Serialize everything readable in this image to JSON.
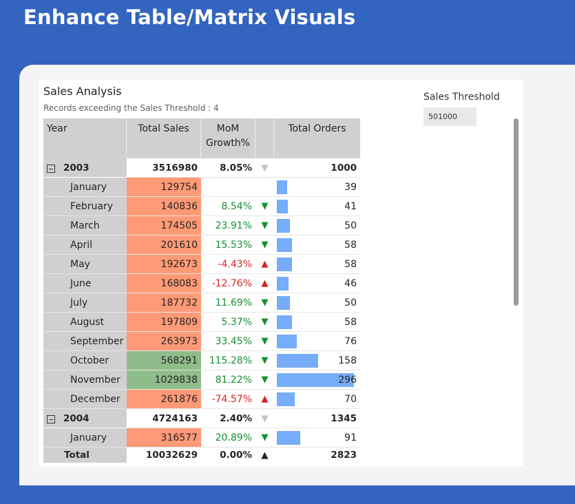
{
  "page": {
    "title": "Enhance Table/Matrix Visuals"
  },
  "visual": {
    "title": "Sales Analysis",
    "subtitle": "Records exceeding the Sales Threshold : 4"
  },
  "slicer": {
    "label": "Sales Threshold",
    "value": "501000"
  },
  "matrix": {
    "columns": {
      "year": "Year",
      "sales": "Total Sales",
      "growth_line1": "MoM",
      "growth_line2": "Growth%",
      "orders": "Total Orders"
    },
    "colors": {
      "below_threshold": "#ff9a76",
      "above_threshold": "#8fbc8b",
      "bar": "#77acf8",
      "positive": "#14902e",
      "negative": "#d5231f"
    },
    "max_orders": 296,
    "rows": [
      {
        "type": "year",
        "label": "2003",
        "sales": "3516980",
        "growth": "8.05%",
        "trend": "neutral",
        "orders": "1000"
      },
      {
        "type": "month",
        "label": "January",
        "sales": "129754",
        "growth": "",
        "trend": "none",
        "orders": "39",
        "status": "below"
      },
      {
        "type": "month",
        "label": "February",
        "sales": "140836",
        "growth": "8.54%",
        "trend": "down",
        "orders": "41",
        "status": "below"
      },
      {
        "type": "month",
        "label": "March",
        "sales": "174505",
        "growth": "23.91%",
        "trend": "down",
        "orders": "50",
        "status": "below"
      },
      {
        "type": "month",
        "label": "April",
        "sales": "201610",
        "growth": "15.53%",
        "trend": "down",
        "orders": "58",
        "status": "below"
      },
      {
        "type": "month",
        "label": "May",
        "sales": "192673",
        "growth": "-4.43%",
        "trend": "up",
        "orders": "58",
        "status": "below"
      },
      {
        "type": "month",
        "label": "June",
        "sales": "168083",
        "growth": "-12.76%",
        "trend": "up",
        "orders": "46",
        "status": "below"
      },
      {
        "type": "month",
        "label": "July",
        "sales": "187732",
        "growth": "11.69%",
        "trend": "down",
        "orders": "50",
        "status": "below"
      },
      {
        "type": "month",
        "label": "August",
        "sales": "197809",
        "growth": "5.37%",
        "trend": "down",
        "orders": "58",
        "status": "below"
      },
      {
        "type": "month",
        "label": "September",
        "sales": "263973",
        "growth": "33.45%",
        "trend": "down",
        "orders": "76",
        "status": "below"
      },
      {
        "type": "month",
        "label": "October",
        "sales": "568291",
        "growth": "115.28%",
        "trend": "down",
        "orders": "158",
        "status": "above"
      },
      {
        "type": "month",
        "label": "November",
        "sales": "1029838",
        "growth": "81.22%",
        "trend": "down",
        "orders": "296",
        "status": "above"
      },
      {
        "type": "month",
        "label": "December",
        "sales": "261876",
        "growth": "-74.57%",
        "trend": "up",
        "orders": "70",
        "status": "below"
      },
      {
        "type": "year",
        "label": "2004",
        "sales": "4724163",
        "growth": "2.40%",
        "trend": "neutral",
        "orders": "1345"
      },
      {
        "type": "month",
        "label": "January",
        "sales": "316577",
        "growth": "20.89%",
        "trend": "down",
        "orders": "91",
        "status": "below"
      }
    ],
    "total": {
      "label": "Total",
      "sales": "10032629",
      "growth": "0.00%",
      "trend": "black",
      "orders": "2823"
    },
    "arrow_glyphs": {
      "down": "▼",
      "up": "▲",
      "neutral": "▼",
      "black": "▲",
      "none": ""
    }
  }
}
